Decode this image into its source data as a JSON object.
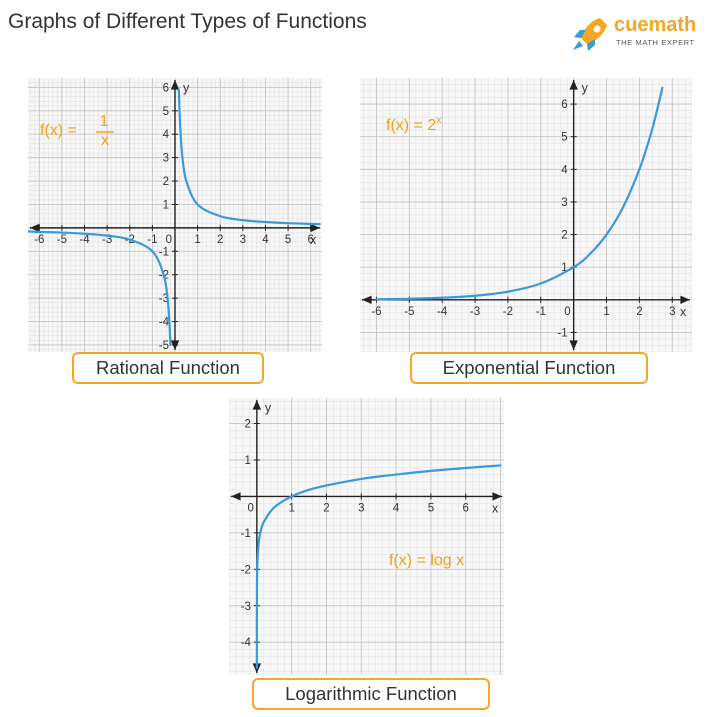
{
  "header": {
    "title": "Graphs of Different Types of Functions",
    "brand": "cuemath",
    "brand_tagline": "THE MATH EXPERT"
  },
  "colors": {
    "curve": "#3a9ad9",
    "accent": "#f0a020",
    "grid_minor": "#e2e2e2",
    "grid_major": "#c6c6c6",
    "axis": "#222222"
  },
  "chart_data": [
    {
      "type": "line",
      "caption": "Rational Function",
      "formula": {
        "lhs": "f(x) =",
        "numerator": "1",
        "denominator": "x"
      },
      "function": "1/x",
      "xlabel": "x",
      "ylabel": "y",
      "xlim": [
        -6.5,
        6.5
      ],
      "ylim": [
        -5.3,
        6.4
      ],
      "xticks": [
        -6,
        -5,
        -4,
        -3,
        -2,
        -1,
        1,
        2,
        3,
        4,
        5,
        6
      ],
      "yticks": [
        -5,
        -4,
        -3,
        -2,
        -1,
        1,
        2,
        3,
        4,
        5,
        6
      ],
      "origin_label": "0",
      "grid": true,
      "branches": [
        {
          "x": [
            0.17,
            0.2,
            0.25,
            0.33,
            0.5,
            1,
            2,
            3,
            4,
            5,
            6,
            6.4
          ],
          "y": [
            5.9,
            5,
            4,
            3,
            2,
            1,
            0.5,
            0.33,
            0.25,
            0.2,
            0.17,
            0.16
          ]
        },
        {
          "x": [
            -6.5,
            -6,
            -5,
            -4,
            -3,
            -2,
            -1,
            -0.5,
            -0.33,
            -0.25,
            -0.2
          ],
          "y": [
            -0.15,
            -0.17,
            -0.2,
            -0.25,
            -0.33,
            -0.5,
            -1,
            -2,
            -3,
            -4,
            -5
          ]
        }
      ]
    },
    {
      "type": "line",
      "caption": "Exponential Function",
      "formula": {
        "text": "f(x) = 2",
        "superscript": "x"
      },
      "function": "2^x",
      "xlabel": "x",
      "ylabel": "y",
      "xlim": [
        -6.5,
        3.6
      ],
      "ylim": [
        -1.6,
        6.8
      ],
      "xticks": [
        -6,
        -5,
        -4,
        -3,
        -2,
        -1,
        1,
        2,
        3
      ],
      "yticks": [
        -1,
        1,
        2,
        3,
        4,
        5,
        6
      ],
      "origin_label": "0",
      "grid": true,
      "branches": [
        {
          "x": [
            -6,
            -5,
            -4,
            -3,
            -2,
            -1,
            0,
            0.5,
            1,
            1.5,
            2,
            2.3,
            2.5,
            2.7
          ],
          "y": [
            0.016,
            0.031,
            0.063,
            0.125,
            0.25,
            0.5,
            1,
            1.41,
            2,
            2.83,
            4,
            4.92,
            5.66,
            6.5
          ]
        }
      ]
    },
    {
      "type": "line",
      "caption": "Logarithmic Function",
      "formula": {
        "text": "f(x) = log x"
      },
      "function": "log10(x)",
      "xlabel": "x",
      "ylabel": "y",
      "xlim": [
        -0.8,
        7.1
      ],
      "ylim": [
        -4.9,
        2.7
      ],
      "xticks": [
        1,
        2,
        3,
        4,
        5,
        6
      ],
      "yticks": [
        -4,
        -3,
        -2,
        -1,
        1,
        2
      ],
      "origin_label": "0",
      "grid": true,
      "branches": [
        {
          "x": [
            2e-05,
            0.0001,
            0.001,
            0.01,
            0.05,
            0.1,
            0.2,
            0.5,
            1,
            1.5,
            2,
            3,
            4,
            5,
            6,
            7
          ],
          "y": [
            -4.7,
            -4,
            -3,
            -2,
            -1.3,
            -1,
            -0.7,
            -0.3,
            0,
            0.18,
            0.3,
            0.48,
            0.6,
            0.7,
            0.78,
            0.85
          ]
        }
      ]
    }
  ]
}
